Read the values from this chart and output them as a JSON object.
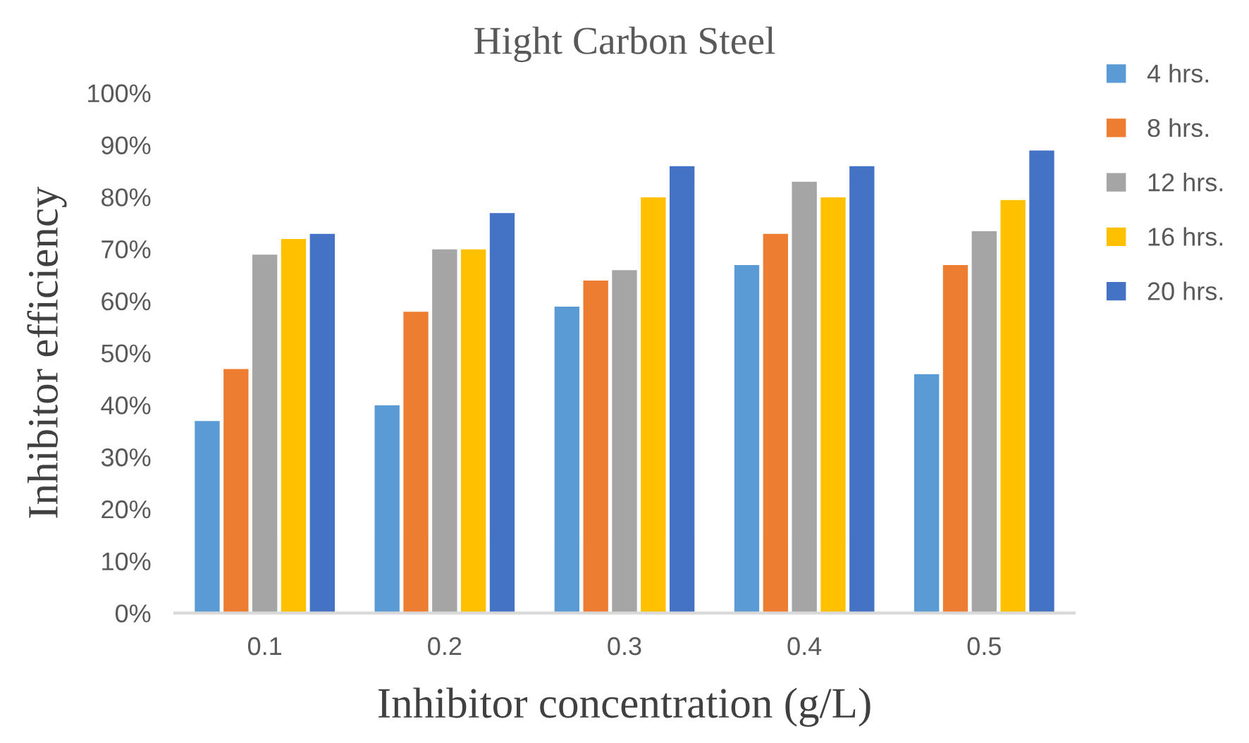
{
  "chart_data": {
    "type": "bar",
    "title": "Hight Carbon Steel",
    "xlabel": "Inhibitor concentration (g/L)",
    "ylabel": "Inhibitor efficiency",
    "categories": [
      "0.1",
      "0.2",
      "0.3",
      "0.4",
      "0.5"
    ],
    "series": [
      {
        "name": "4 hrs.",
        "color": "#5b9bd5",
        "values": [
          37,
          40,
          59,
          67,
          46
        ]
      },
      {
        "name": "8 hrs.",
        "color": "#ed7d31",
        "values": [
          47,
          58,
          64,
          73,
          67
        ]
      },
      {
        "name": "12 hrs.",
        "color": "#a5a5a5",
        "values": [
          69,
          70,
          66,
          83,
          73.5
        ]
      },
      {
        "name": "16 hrs.",
        "color": "#ffc000",
        "values": [
          72,
          70,
          80,
          80,
          79.5
        ]
      },
      {
        "name": "20 hrs.",
        "color": "#4472c4",
        "values": [
          73,
          77,
          86,
          86,
          89
        ]
      }
    ],
    "ylim": [
      0,
      100
    ],
    "yticks": [
      {
        "value": 0,
        "label": "0%"
      },
      {
        "value": 10,
        "label": "10%"
      },
      {
        "value": 20,
        "label": "20%"
      },
      {
        "value": 30,
        "label": "30%"
      },
      {
        "value": 40,
        "label": "40%"
      },
      {
        "value": 50,
        "label": "50%"
      },
      {
        "value": 60,
        "label": "60%"
      },
      {
        "value": 70,
        "label": "70%"
      },
      {
        "value": 80,
        "label": "80%"
      },
      {
        "value": 90,
        "label": "90%"
      },
      {
        "value": 100,
        "label": "100%"
      }
    ],
    "grid": false,
    "legend": "right"
  }
}
